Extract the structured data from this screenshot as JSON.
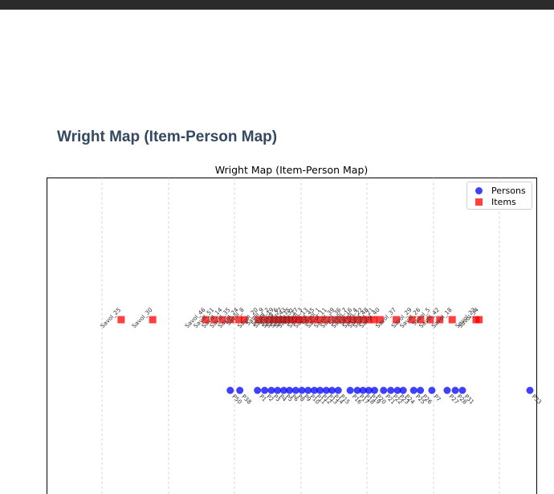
{
  "page": {
    "heading": "Wright Map (Item-Person Map)"
  },
  "chart_data": {
    "type": "scatter",
    "title": "Wright Map (Item-Person Map)",
    "xlabel": "",
    "ylabel": "",
    "xlim": [
      0,
      100
    ],
    "ylim": [
      0,
      1
    ],
    "grid": "vertical dashed",
    "legend_position": "top-right",
    "colors": {
      "persons": "#0000ff",
      "items": "#ff0000"
    },
    "series": [
      {
        "name": "Persons",
        "marker": "circle",
        "y": 0.25,
        "points": [
          {
            "x": 12.4,
            "label": "P50"
          },
          {
            "x": 14.4,
            "label": "P38"
          },
          {
            "x": 18.1,
            "label": "P1"
          },
          {
            "x": 19.6,
            "label": "P2"
          },
          {
            "x": 21.0,
            "label": "P3"
          },
          {
            "x": 22.3,
            "label": "P4"
          },
          {
            "x": 23.6,
            "label": "P5"
          },
          {
            "x": 24.8,
            "label": "P6"
          },
          {
            "x": 26.1,
            "label": "P8"
          },
          {
            "x": 27.4,
            "label": "P9"
          },
          {
            "x": 28.7,
            "label": "P10"
          },
          {
            "x": 30.0,
            "label": "P11"
          },
          {
            "x": 31.2,
            "label": "P12"
          },
          {
            "x": 32.5,
            "label": "P13"
          },
          {
            "x": 33.7,
            "label": "P14"
          },
          {
            "x": 35.0,
            "label": "P15"
          },
          {
            "x": 37.5,
            "label": "P16"
          },
          {
            "x": 39.0,
            "label": "P17"
          },
          {
            "x": 40.2,
            "label": "P18"
          },
          {
            "x": 41.4,
            "label": "P19"
          },
          {
            "x": 42.6,
            "label": "P20"
          },
          {
            "x": 44.5,
            "label": "P21"
          },
          {
            "x": 46.0,
            "label": "P22"
          },
          {
            "x": 47.4,
            "label": "P23"
          },
          {
            "x": 48.6,
            "label": "P24"
          },
          {
            "x": 50.8,
            "label": "P25"
          },
          {
            "x": 52.2,
            "label": "P26"
          },
          {
            "x": 54.6,
            "label": "P7"
          },
          {
            "x": 57.8,
            "label": "P27"
          },
          {
            "x": 59.5,
            "label": "P28"
          },
          {
            "x": 61.0,
            "label": "P31"
          },
          {
            "x": 76.8,
            "label": "P33"
          }
        ]
      },
      {
        "name": "Items",
        "marker": "square",
        "y": 0.6,
        "points": [
          {
            "x": 2.5,
            "label": "Savol_25"
          },
          {
            "x": 9.1,
            "label": "Savol_30"
          },
          {
            "x": 20.2,
            "label": "Savol_46"
          },
          {
            "x": 22.0,
            "label": "Savol_51"
          },
          {
            "x": 23.7,
            "label": "Savol_14"
          },
          {
            "x": 25.4,
            "label": "Savol_35"
          },
          {
            "x": 27.1,
            "label": "Savol_24"
          },
          {
            "x": 28.3,
            "label": "Savol_8"
          },
          {
            "x": 31.2,
            "label": "Savol_20"
          },
          {
            "x": 32.4,
            "label": "Savol_9"
          },
          {
            "x": 33.6,
            "label": "Savol_2"
          },
          {
            "x": 34.5,
            "label": "Savol_19"
          },
          {
            "x": 35.4,
            "label": "Savol_6"
          },
          {
            "x": 36.3,
            "label": "Savol_27"
          },
          {
            "x": 37.1,
            "label": "Savol_43"
          },
          {
            "x": 38.0,
            "label": "Savol_15"
          },
          {
            "x": 38.8,
            "label": "Savol_31"
          },
          {
            "x": 39.6,
            "label": "Savol_17"
          },
          {
            "x": 40.5,
            "label": "Savol_3"
          },
          {
            "x": 41.7,
            "label": "Savol_13"
          },
          {
            "x": 43.0,
            "label": "Savol_45"
          },
          {
            "x": 44.2,
            "label": "Savol_1"
          },
          {
            "x": 45.6,
            "label": "Savol_11"
          },
          {
            "x": 47.2,
            "label": "Savol_39"
          },
          {
            "x": 48.6,
            "label": "Savol_36"
          },
          {
            "x": 49.8,
            "label": "Savol_7"
          },
          {
            "x": 50.9,
            "label": "Savol_16"
          },
          {
            "x": 52.0,
            "label": "Savol_4"
          },
          {
            "x": 53.2,
            "label": "Savol_22"
          },
          {
            "x": 54.3,
            "label": "Savol_48"
          },
          {
            "x": 55.4,
            "label": "Savol_21"
          },
          {
            "x": 56.7,
            "label": "Savol_40"
          },
          {
            "x": 60.1,
            "label": "Savol_37"
          },
          {
            "x": 63.4,
            "label": "Savol_29"
          },
          {
            "x": 65.2,
            "label": "Savol_26"
          },
          {
            "x": 67.2,
            "label": "Savol_5"
          },
          {
            "x": 69.2,
            "label": "Savol_42"
          },
          {
            "x": 71.8,
            "label": "Savol_18"
          },
          {
            "x": 76.8,
            "label": "Savol_23"
          },
          {
            "x": 77.4,
            "label": "Savol_34"
          }
        ]
      }
    ]
  }
}
